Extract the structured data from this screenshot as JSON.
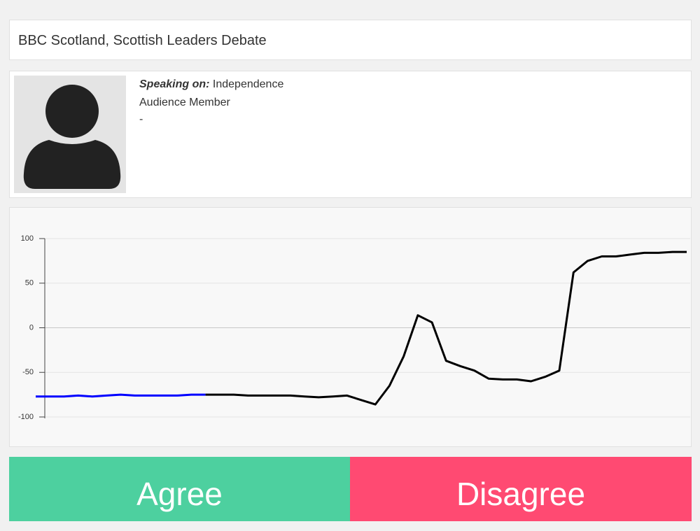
{
  "header": {
    "title": "BBC Scotland, Scottish Leaders Debate"
  },
  "speaker": {
    "speaking_on_label": "Speaking on:",
    "topic": "Independence",
    "role": "Audience Member",
    "note": "-"
  },
  "chart_data": {
    "type": "line",
    "series": [
      {
        "color": "#0000ff",
        "values": [
          -77,
          -77,
          -77,
          -76,
          -77,
          -76,
          -75,
          -76,
          -76,
          -76,
          -76,
          -75,
          -75,
          null,
          null,
          null,
          null,
          null,
          null,
          null,
          null,
          null,
          null,
          null,
          null,
          null,
          null,
          null,
          null,
          null,
          null,
          null,
          null,
          null,
          null,
          null,
          null,
          null,
          null,
          null,
          null,
          null,
          null,
          null,
          null,
          null,
          null
        ]
      },
      {
        "color": "#000000",
        "values": [
          null,
          null,
          null,
          null,
          null,
          null,
          null,
          null,
          null,
          null,
          null,
          null,
          -75,
          -75,
          -75,
          -76,
          -76,
          -76,
          -76,
          -77,
          -78,
          -77,
          -76,
          -81,
          -86,
          -65,
          -32,
          14,
          6,
          -37,
          -43,
          -48,
          -57,
          -58,
          -58,
          -60,
          -55,
          -48,
          62,
          75,
          80,
          80,
          82,
          84,
          84,
          85,
          85
        ]
      }
    ],
    "ylim": [
      -100,
      100
    ],
    "yticks": [
      100,
      50,
      0,
      -50,
      -100
    ],
    "grid": true
  },
  "buttons": {
    "agree": "Agree",
    "disagree": "Disagree"
  }
}
